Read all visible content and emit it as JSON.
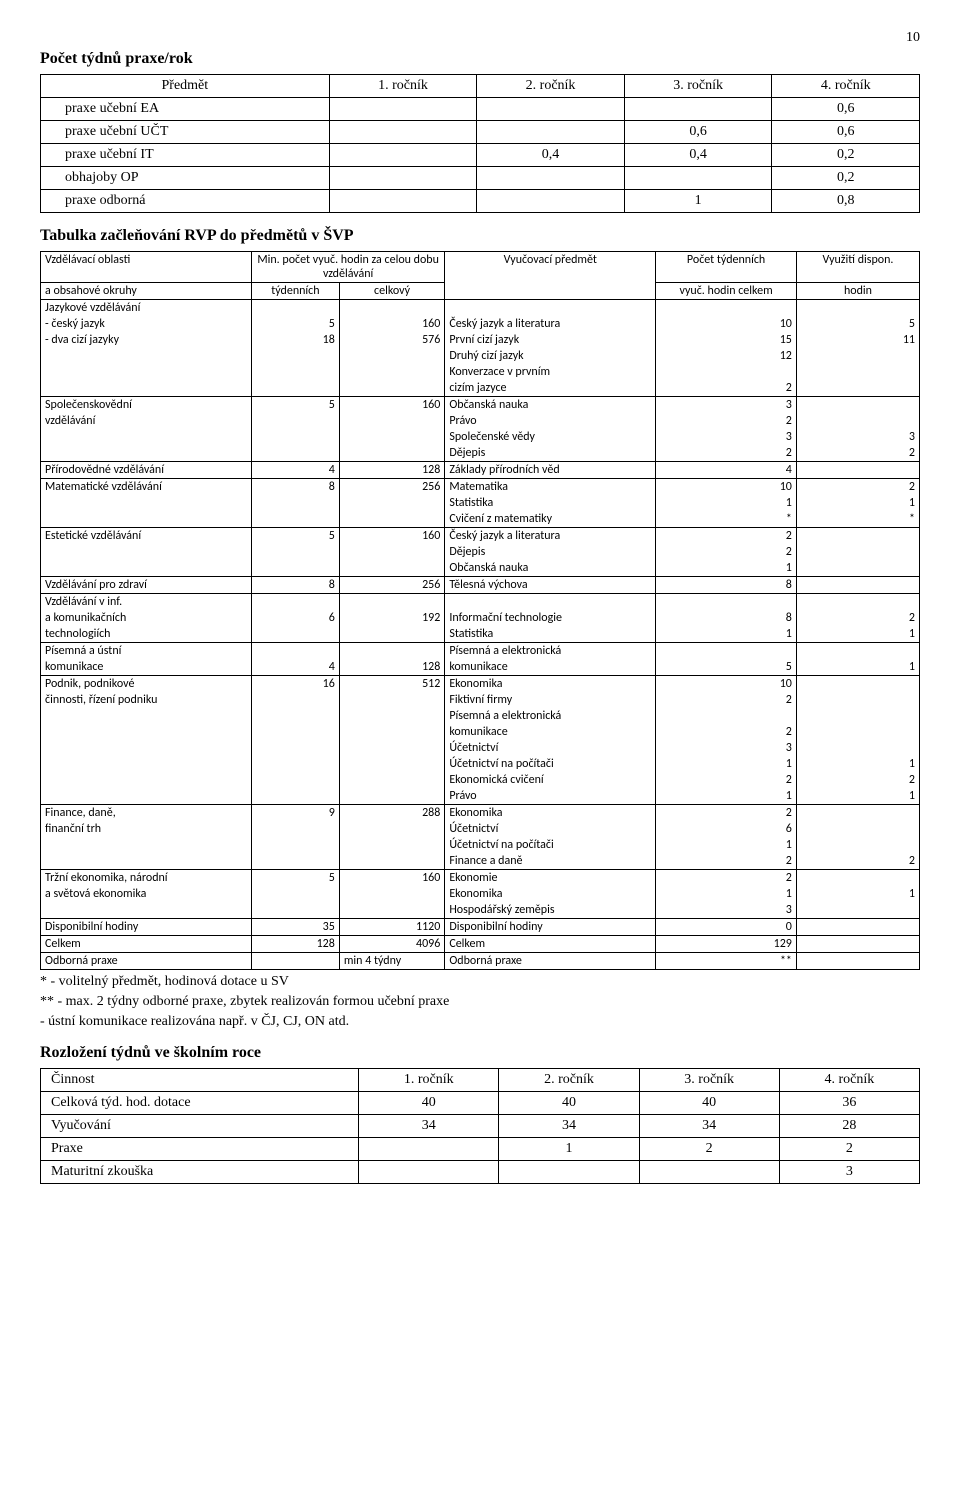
{
  "page_number": "10",
  "heading1": "Počet týdnů praxe/rok",
  "table1": {
    "headers": [
      "Předmět",
      "1. ročník",
      "2. ročník",
      "3. ročník",
      "4. ročník"
    ],
    "rows": [
      [
        "praxe učební EA",
        "",
        "",
        "",
        "0,6"
      ],
      [
        "praxe učební UČT",
        "",
        "",
        "0,6",
        "0,6"
      ],
      [
        "praxe učební IT",
        "",
        "0,4",
        "0,4",
        "0,2"
      ],
      [
        "obhajoby OP",
        "",
        "",
        "",
        "0,2"
      ],
      [
        "praxe odborná",
        "",
        "",
        "1",
        "0,8"
      ]
    ]
  },
  "heading2": "Tabulka začleňování RVP do předmětů v ŠVP",
  "table2": {
    "header": {
      "col1_l1": "Vzdělávací oblasti",
      "col1_l2": "a obsahové okruhy",
      "col23_l1": "Min. počet vyuč. hodin za celou dobu vzdělávání",
      "col2_l2": "týdenních",
      "col3_l2": "celkový",
      "col4_l1": "Vyučovací předmět",
      "col5_l1": "Počet týdenních",
      "col5_l2": "vyuč. hodin celkem",
      "col6_l1": "Využití dispon.",
      "col6_l2": "hodin"
    },
    "rows": [
      {
        "c1": "Jazykové vzdělávání",
        "c2": "",
        "c3": "",
        "c4": "",
        "c5": "",
        "c6": ""
      },
      {
        "c1": " -  český jazyk",
        "c2": "5",
        "c3": "160",
        "c4": "Český jazyk a literatura",
        "c5": "10",
        "c6": "5"
      },
      {
        "c1": " - dva cizí jazyky",
        "c2": "18",
        "c3": "576",
        "c4": "První cizí jazyk",
        "c5": "15",
        "c6": "11"
      },
      {
        "c1": "",
        "c2": "",
        "c3": "",
        "c4": "Druhý cizí jazyk",
        "c5": "12",
        "c6": ""
      },
      {
        "c1": "",
        "c2": "",
        "c3": "",
        "c4": "Konverzace v prvním",
        "c5": "",
        "c6": ""
      },
      {
        "c1": "",
        "c2": "",
        "c3": "",
        "c4": "cizím jazyce",
        "c5": "2",
        "c6": ""
      },
      {
        "c1": "Společenskovědní",
        "c2": "5",
        "c3": "160",
        "c4": "Občanská nauka",
        "c5": "3",
        "c6": ""
      },
      {
        "c1": "vzdělávání",
        "c2": "",
        "c3": "",
        "c4": "Právo",
        "c5": "2",
        "c6": ""
      },
      {
        "c1": "",
        "c2": "",
        "c3": "",
        "c4": "Společenské vědy",
        "c5": "3",
        "c6": "3"
      },
      {
        "c1": "",
        "c2": "",
        "c3": "",
        "c4": "Dějepis",
        "c5": "2",
        "c6": "2"
      },
      {
        "c1": "Přírodovědné vzdělávání",
        "c2": "4",
        "c3": "128",
        "c4": "Základy přírodních věd",
        "c5": "4",
        "c6": ""
      },
      {
        "c1": "Matematické vzdělávání",
        "c2": "8",
        "c3": "256",
        "c4": "Matematika",
        "c5": "10",
        "c6": "2"
      },
      {
        "c1": "",
        "c2": "",
        "c3": "",
        "c4": "Statistika",
        "c5": "1",
        "c6": "1"
      },
      {
        "c1": "",
        "c2": "",
        "c3": "",
        "c4": "Cvičení z matematiky",
        "c5": "*",
        "c6": "*"
      },
      {
        "c1": "Estetické vzdělávání",
        "c2": "5",
        "c3": "160",
        "c4": "Český jazyk a literatura",
        "c5": "2",
        "c6": ""
      },
      {
        "c1": "",
        "c2": "",
        "c3": "",
        "c4": "Dějepis",
        "c5": "2",
        "c6": ""
      },
      {
        "c1": "",
        "c2": "",
        "c3": "",
        "c4": "Občanská nauka",
        "c5": "1",
        "c6": ""
      },
      {
        "c1": "Vzdělávání pro zdraví",
        "c2": "8",
        "c3": "256",
        "c4": "Tělesná výchova",
        "c5": "8",
        "c6": ""
      },
      {
        "c1": "Vzdělávání v inf.",
        "c2": "",
        "c3": "",
        "c4": "",
        "c5": "",
        "c6": ""
      },
      {
        "c1": "a komunikačních",
        "c2": "6",
        "c3": "192",
        "c4": "Informační technologie",
        "c5": "8",
        "c6": "2"
      },
      {
        "c1": "technologiích",
        "c2": "",
        "c3": "",
        "c4": "Statistika",
        "c5": "1",
        "c6": "1"
      },
      {
        "c1": "Písemná a ústní",
        "c2": "",
        "c3": "",
        "c4": "Písemná a elektronická",
        "c5": "",
        "c6": ""
      },
      {
        "c1": "komunikace",
        "c2": "4",
        "c3": "128",
        "c4": "komunikace",
        "c5": "5",
        "c6": "1"
      },
      {
        "c1": "Podnik, podnikové",
        "c2": "16",
        "c3": "512",
        "c4": "Ekonomika",
        "c5": "10",
        "c6": ""
      },
      {
        "c1": " činnosti, řízení podniku",
        "c2": "",
        "c3": "",
        "c4": "Fiktivní firmy",
        "c5": "2",
        "c6": ""
      },
      {
        "c1": "",
        "c2": "",
        "c3": "",
        "c4": "Písemná a elektronická",
        "c5": "",
        "c6": ""
      },
      {
        "c1": "",
        "c2": "",
        "c3": "",
        "c4": "komunikace",
        "c5": "2",
        "c6": ""
      },
      {
        "c1": "",
        "c2": "",
        "c3": "",
        "c4": "Účetnictví",
        "c5": "3",
        "c6": ""
      },
      {
        "c1": "",
        "c2": "",
        "c3": "",
        "c4": "Účetnictví na počítači",
        "c5": "1",
        "c6": "1"
      },
      {
        "c1": "",
        "c2": "",
        "c3": "",
        "c4": "Ekonomická cvičení",
        "c5": "2",
        "c6": "2"
      },
      {
        "c1": "",
        "c2": "",
        "c3": "",
        "c4": "Právo",
        "c5": "1",
        "c6": "1"
      },
      {
        "c1": "Finance, daně,",
        "c2": "9",
        "c3": "288",
        "c4": "Ekonomika",
        "c5": "2",
        "c6": ""
      },
      {
        "c1": "finanční trh",
        "c2": "",
        "c3": "",
        "c4": "Účetnictví",
        "c5": "6",
        "c6": ""
      },
      {
        "c1": "",
        "c2": "",
        "c3": "",
        "c4": "Účetnictví na počítači",
        "c5": "1",
        "c6": ""
      },
      {
        "c1": "",
        "c2": "",
        "c3": "",
        "c4": "Finance a daně",
        "c5": "2",
        "c6": "2"
      },
      {
        "c1": "Tržní ekonomika, národní",
        "c2": "5",
        "c3": "160",
        "c4": "Ekonomie",
        "c5": "2",
        "c6": ""
      },
      {
        "c1": "a světová ekonomika",
        "c2": "",
        "c3": "",
        "c4": "Ekonomika",
        "c5": "1",
        "c6": "1"
      },
      {
        "c1": "",
        "c2": "",
        "c3": "",
        "c4": "Hospodářský zeměpis",
        "c5": "3",
        "c6": ""
      },
      {
        "c1": "Disponibilní hodiny",
        "c2": "35",
        "c3": "1120",
        "c4": "Disponibilní hodiny",
        "c5": "0",
        "c6": ""
      },
      {
        "c1": "Celkem",
        "c2": "128",
        "c3": "4096",
        "c4": "Celkem",
        "c5": "129",
        "c6": ""
      },
      {
        "c1": "Odborná praxe",
        "c2": "",
        "c3": "min 4 týdny",
        "c4": "Odborná praxe",
        "c5": "**",
        "c6": ""
      }
    ],
    "group_bounds": [
      [
        0,
        5
      ],
      [
        6,
        9
      ],
      [
        10,
        10
      ],
      [
        11,
        13
      ],
      [
        14,
        16
      ],
      [
        17,
        17
      ],
      [
        18,
        20
      ],
      [
        21,
        22
      ],
      [
        23,
        30
      ],
      [
        31,
        34
      ],
      [
        35,
        37
      ],
      [
        38,
        38
      ],
      [
        39,
        39
      ],
      [
        40,
        40
      ]
    ],
    "colors": {
      "border": "#000000",
      "bg": "#ffffff",
      "text": "#000000"
    },
    "colwidths_pct": [
      24,
      10,
      12,
      24,
      16,
      14
    ]
  },
  "notes": [
    "* - volitelný předmět, hodinová dotace u SV",
    "** - max. 2 týdny odborné praxe, zbytek realizován formou učební praxe",
    "- ústní komunikace realizována např. v ČJ, CJ, ON atd."
  ],
  "heading3": "Rozložení týdnů ve školním roce",
  "table3": {
    "headers": [
      "Činnost",
      "1. ročník",
      "2. ročník",
      "3. ročník",
      "4. ročník"
    ],
    "rows": [
      [
        "Celková týd. hod. dotace",
        "40",
        "40",
        "40",
        "36"
      ],
      [
        "Vyučování",
        "34",
        "34",
        "34",
        "28"
      ],
      [
        "Praxe",
        "",
        "1",
        "2",
        "2"
      ],
      [
        "Maturitní zkouška",
        "",
        "",
        "",
        "3"
      ]
    ]
  }
}
